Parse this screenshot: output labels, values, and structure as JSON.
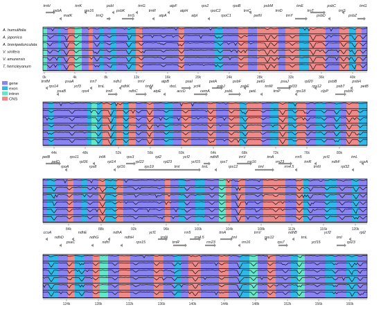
{
  "species": [
    "A. humulifolia",
    "A. japonica",
    "A. brevipedunculata",
    "V. vinifera",
    "V. amurensis",
    "T. hemsleyanum"
  ],
  "legend": [
    {
      "label": "gene",
      "color": "#8a84f0"
    },
    {
      "label": "exon",
      "color": "#2fb8e8"
    },
    {
      "label": "intron",
      "color": "#66e6c8"
    },
    {
      "label": "CNS",
      "color": "#ef8a8a"
    }
  ],
  "percent_label": "100%",
  "colors": {
    "gene": "#8a84f0",
    "exon": "#2fb8e8",
    "intron": "#66e6c8",
    "cns": "#ef8a8a",
    "arrow": "#8f8f8f"
  },
  "panels": [
    {
      "genes": [
        "trnH",
        "psbA",
        "matK",
        "trnK",
        "rps16",
        "trnQ",
        "psbI",
        "psbK",
        "trnS",
        "trnG",
        "trnR",
        "atpA",
        "atpF",
        "atpH",
        "atpI",
        "rps2",
        "rpoC2",
        "rpoC1",
        "rpoB",
        "trnC",
        "petN",
        "psbM",
        "trnD",
        "trnY",
        "trnE",
        "trnT",
        "psbD",
        "psbC",
        "trnS",
        "psbZ",
        "trnG"
      ],
      "ticks": [
        "0k",
        "4k",
        "8k",
        "12k",
        "16k",
        "20k",
        "24k",
        "28k",
        "32k",
        "36k",
        "40k"
      ]
    },
    {
      "genes": [
        "trnfM",
        "rps14",
        "psaB",
        "psaA",
        "ycf3",
        "rps4",
        "trnT",
        "trnL",
        "trnF",
        "ndhJ",
        "ndhK",
        "ndhC",
        "trnV",
        "trnM",
        "atpE",
        "atpB",
        "rbcL",
        "accD",
        "psaI",
        "ycf4",
        "cemA",
        "petA",
        "psbJ",
        "psbL",
        "psbF",
        "psbE",
        "petL",
        "petG",
        "trnW",
        "trnP",
        "psaJ",
        "rpl33",
        "rps18",
        "rpl20",
        "rps12",
        "clpP",
        "psbB",
        "psbT",
        "psbN",
        "psbH",
        "petB"
      ],
      "ticks": [
        "44k",
        "48k",
        "52k",
        "56k",
        "60k",
        "64k",
        "68k",
        "72k",
        "76k",
        "80k"
      ]
    },
    {
      "genes": [
        "petB",
        "petD",
        "rpoA",
        "rps11",
        "rpl36",
        "rps8",
        "infA",
        "rpl14",
        "rpl16",
        "rps3",
        "rpl22",
        "rps19",
        "rpl2",
        "rpl23",
        "trnI",
        "ycf2",
        "ycf15",
        "trnL",
        "ndhB",
        "rps7",
        "rps12",
        "trnV",
        "rrn16",
        "trnI",
        "trnA",
        "rrn23",
        "rrn4.5",
        "rrn5",
        "trnR",
        "trnN",
        "ycf1",
        "ndhF",
        "rpl32",
        "trnL",
        "ccsA"
      ],
      "ticks": [
        "84k",
        "88k",
        "92k",
        "96k",
        "100k",
        "104k",
        "108k",
        "112k",
        "116k",
        "120k"
      ]
    },
    {
      "genes": [
        "ccsA",
        "ndhD",
        "psaC",
        "ndhE",
        "ndhG",
        "ndhI",
        "ndhA",
        "ndhH",
        "rps15",
        "ycf1",
        "trnN",
        "trnR",
        "rrn5",
        "rrn4.5",
        "rrn23",
        "trnA",
        "trnI",
        "rrn16",
        "trnV",
        "rps12",
        "rps7",
        "ndhB",
        "trnL",
        "ycf15",
        "ycf2",
        "trnI",
        "rpl23",
        "rpl2"
      ],
      "ticks": [
        "124k",
        "128k",
        "132k",
        "136k",
        "140k",
        "144k",
        "148k",
        "152k",
        "156k",
        "160k"
      ]
    }
  ]
}
